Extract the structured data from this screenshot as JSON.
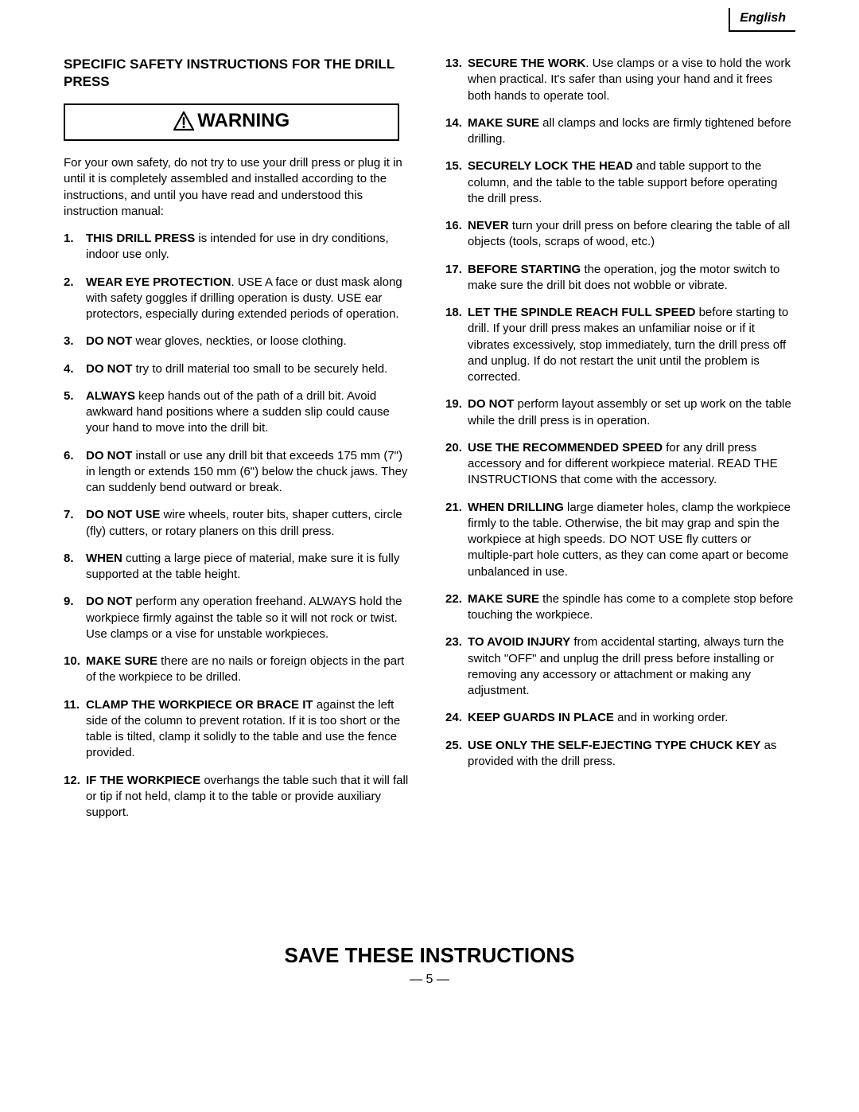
{
  "language_label": "English",
  "section_title": "SPECIFIC SAFETY INSTRUCTIONS FOR THE DRILL PRESS",
  "warning_label": "WARNING",
  "intro": "For your own safety, do not try to use your drill press or plug it in until it is completely assembled and installed according to the instructions, and until you have read and understood this instruction manual:",
  "items_left": [
    {
      "bold": "THIS DRILL PRESS",
      "rest": " is intended for use in dry conditions, indoor use only."
    },
    {
      "bold": "WEAR EYE PROTECTION",
      "rest": ". USE A face or dust mask along with safety goggles if drilling operation is dusty. USE ear protectors, especially during extended periods of operation."
    },
    {
      "bold": "DO NOT",
      "rest": " wear gloves, neckties, or loose clothing."
    },
    {
      "bold": "DO NOT",
      "rest": " try to drill material too small to be securely held."
    },
    {
      "bold": "ALWAYS",
      "rest": " keep hands out of the path of a drill bit. Avoid awkward hand positions where a sudden slip could cause your hand to move into the drill bit."
    },
    {
      "bold": "DO NOT",
      "rest": " install or use any drill bit that exceeds 175 mm (7\") in length or extends 150 mm (6\") below the chuck jaws. They can suddenly bend outward or break."
    },
    {
      "bold": "DO NOT USE",
      "rest": " wire wheels, router bits, shaper cutters, circle (fly) cutters, or rotary planers on this drill press."
    },
    {
      "bold": "WHEN",
      "rest": " cutting a large piece of material, make sure it is fully supported at the table height."
    },
    {
      "bold": "DO NOT",
      "rest": " perform any operation freehand. ALWAYS hold the workpiece firmly against the table so it will not rock or twist. Use clamps or a vise for unstable workpieces."
    },
    {
      "bold": "MAKE SURE",
      "rest": " there are no nails or foreign objects in the part of the workpiece to be drilled."
    },
    {
      "bold": "CLAMP THE WORKPIECE OR BRACE IT",
      "rest": " against the left side of the column to prevent rotation. If it is too short or the table is tilted, clamp it solidly to the table and use the fence provided."
    },
    {
      "bold": "IF THE WORKPIECE",
      "rest": " overhangs the table such that it will fall or tip if not held, clamp it to the table or provide auxiliary support."
    }
  ],
  "items_right": [
    {
      "bold": "SECURE THE WORK",
      "rest": ". Use clamps or a vise to hold the work when practical. It's safer than using your hand and it frees both hands to operate tool."
    },
    {
      "bold": "MAKE SURE",
      "rest": " all clamps and locks are firmly tightened before drilling."
    },
    {
      "bold": "SECURELY LOCK THE HEAD",
      "rest": " and table support to the column, and the table to the table support before operating the drill press."
    },
    {
      "bold": "NEVER",
      "rest": " turn your drill press on before clearing the table of all objects (tools, scraps of wood, etc.)"
    },
    {
      "bold": "BEFORE STARTING",
      "rest": " the operation, jog the motor switch to make sure the drill bit does not wobble or vibrate."
    },
    {
      "bold": "LET THE SPINDLE REACH FULL SPEED",
      "rest": " before starting to drill. If your drill press makes an unfamiliar noise or if it vibrates excessively, stop immediately, turn the drill press off and unplug. If do not restart the unit until the problem is corrected."
    },
    {
      "bold": "DO NOT",
      "rest": " perform layout assembly or set up work on the table while the drill press is in operation."
    },
    {
      "bold": "USE THE RECOMMENDED SPEED",
      "rest": " for any drill press accessory and for different workpiece material. READ THE INSTRUCTIONS that come with the accessory."
    },
    {
      "bold": "WHEN DRILLING",
      "rest": " large diameter holes, clamp the workpiece firmly to the table. Otherwise, the bit may grap and spin the workpiece at high speeds. DO NOT USE fly cutters or multiple-part hole cutters, as they can come apart or become unbalanced in use."
    },
    {
      "bold": "MAKE SURE",
      "rest": " the spindle has come to a complete stop before touching the workpiece."
    },
    {
      "bold": "TO AVOID INJURY",
      "rest": " from accidental starting, always turn the switch \"OFF\" and unplug the drill press before installing or removing any accessory or attachment or making any adjustment."
    },
    {
      "bold": "KEEP GUARDS IN PLACE",
      "rest": " and in working order."
    },
    {
      "bold": "USE ONLY THE SELF-EJECTING TYPE CHUCK KEY",
      "rest": " as provided with the drill press."
    }
  ],
  "save_label": "SAVE THESE INSTRUCTIONS",
  "page_number": "— 5 —"
}
